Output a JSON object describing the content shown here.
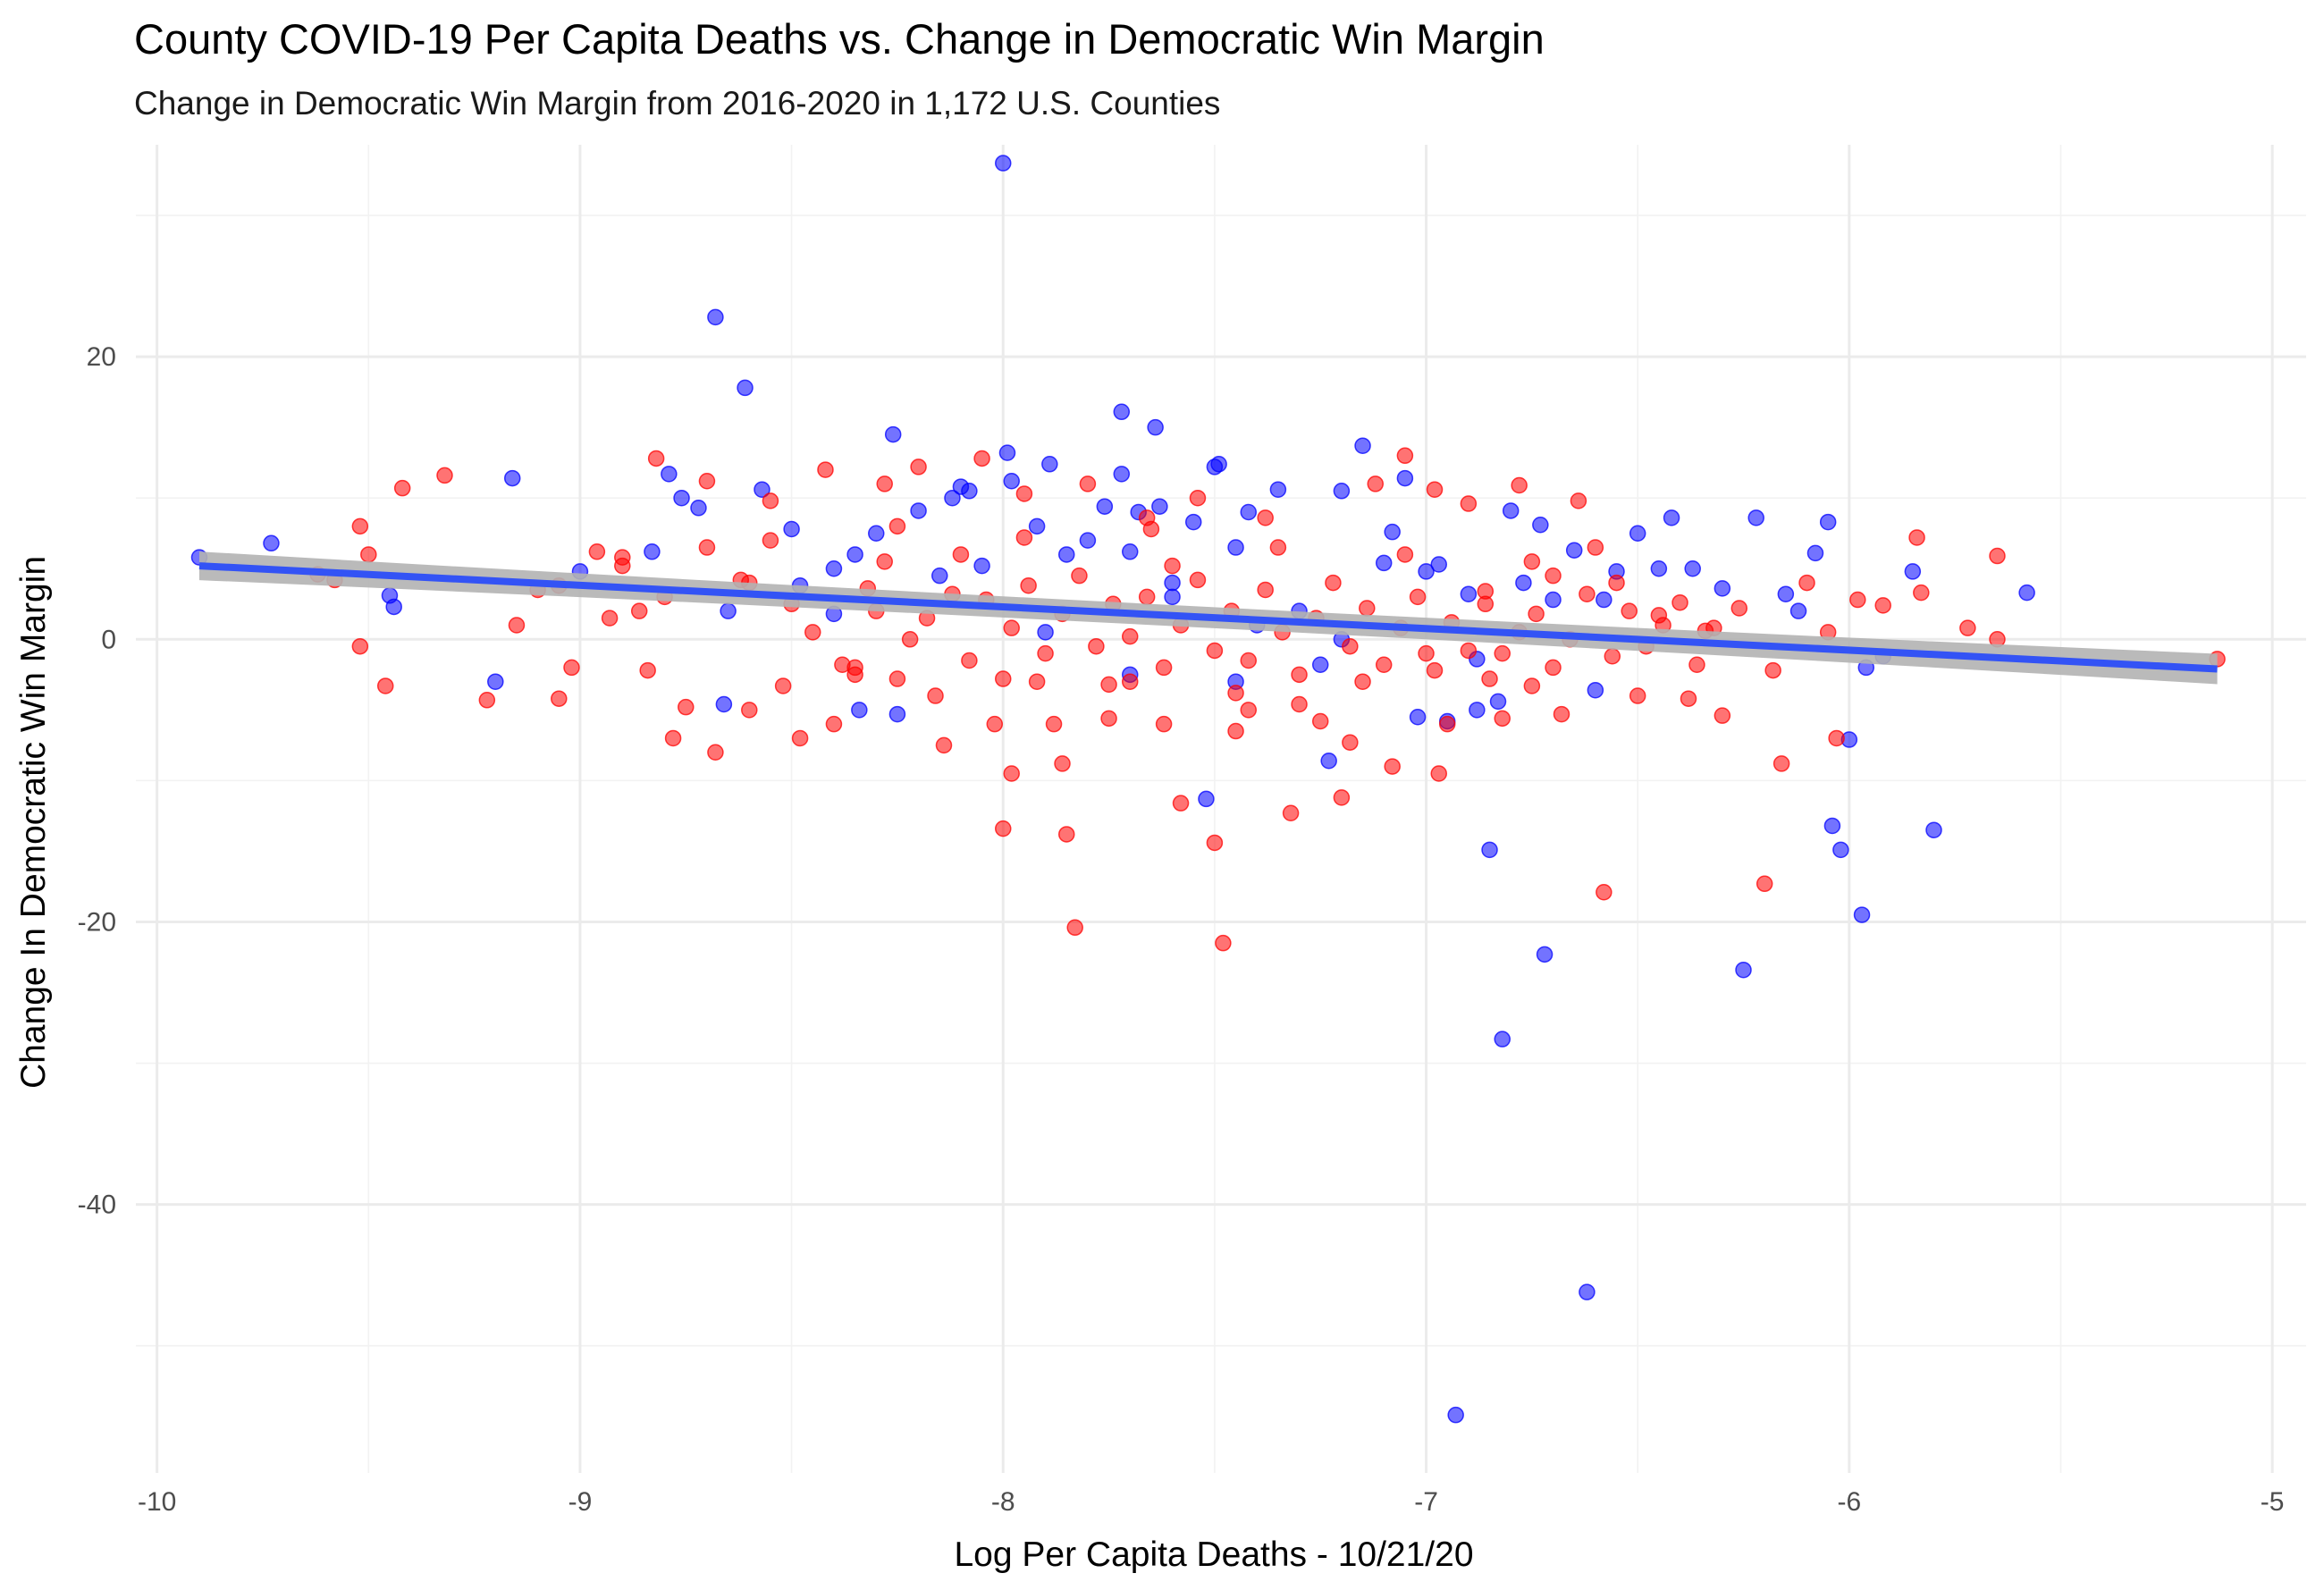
{
  "chart_data": {
    "type": "scatter",
    "title": "County COVID-19 Per Capita Deaths vs. Change in Democratic Win Margin",
    "subtitle": "Change in Democratic Win Margin from 2016-2020 in 1,172 U.S. Counties",
    "xlabel": "Log Per Capita Deaths - 10/21/20",
    "ylabel": "Change In Democratic Win Margin",
    "xlim": [
      -10.05,
      -4.92
    ],
    "ylim": [
      -59,
      35
    ],
    "x_ticks": [
      -10,
      -9,
      -8,
      -7,
      -6,
      -5
    ],
    "y_ticks": [
      -40,
      -20,
      0,
      20
    ],
    "x_tick_labels": [
      "-10",
      "-9",
      "-8",
      "-7",
      "-6",
      "-5"
    ],
    "y_tick_labels": [
      "-40",
      "-20",
      "0",
      "20"
    ],
    "grid": true,
    "trend_line": {
      "x": [
        -9.9,
        -5.13
      ],
      "y": [
        5.2,
        -2.1
      ],
      "color": "#3353f5",
      "band_color": "#b3b3b3"
    },
    "series": [
      {
        "color": "#0000ff",
        "points": [
          [
            -9.9,
            5.8
          ],
          [
            -9.73,
            6.8
          ],
          [
            -9.45,
            3.1
          ],
          [
            -9.44,
            2.3
          ],
          [
            -9.2,
            -3.0
          ],
          [
            -9.16,
            11.4
          ],
          [
            -9.0,
            4.8
          ],
          [
            -8.83,
            6.2
          ],
          [
            -8.79,
            11.7
          ],
          [
            -8.76,
            10.0
          ],
          [
            -8.72,
            9.3
          ],
          [
            -8.68,
            22.8
          ],
          [
            -8.61,
            17.8
          ],
          [
            -8.57,
            10.6
          ],
          [
            -8.66,
            -4.6
          ],
          [
            -8.65,
            2.0
          ],
          [
            -8.5,
            7.8
          ],
          [
            -8.48,
            3.8
          ],
          [
            -8.4,
            5.0
          ],
          [
            -8.35,
            6.0
          ],
          [
            -8.34,
            -5.0
          ],
          [
            -8.3,
            7.5
          ],
          [
            -8.26,
            14.5
          ],
          [
            -8.25,
            -5.3
          ],
          [
            -8.2,
            9.1
          ],
          [
            -8.15,
            4.5
          ],
          [
            -8.12,
            10.0
          ],
          [
            -8.1,
            10.8
          ],
          [
            -8.08,
            10.5
          ],
          [
            -8.05,
            5.2
          ],
          [
            -8.0,
            33.7
          ],
          [
            -7.99,
            13.2
          ],
          [
            -7.98,
            11.2
          ],
          [
            -7.92,
            8.0
          ],
          [
            -7.89,
            12.4
          ],
          [
            -7.85,
            6.0
          ],
          [
            -7.8,
            7.0
          ],
          [
            -7.76,
            9.4
          ],
          [
            -7.72,
            16.1
          ],
          [
            -7.72,
            11.7
          ],
          [
            -7.7,
            6.2
          ],
          [
            -7.68,
            9.0
          ],
          [
            -7.64,
            15.0
          ],
          [
            -7.63,
            9.4
          ],
          [
            -7.6,
            4.0
          ],
          [
            -7.55,
            8.3
          ],
          [
            -7.52,
            -11.3
          ],
          [
            -7.5,
            12.2
          ],
          [
            -7.49,
            12.4
          ],
          [
            -7.45,
            6.5
          ],
          [
            -7.42,
            9.0
          ],
          [
            -7.4,
            1.0
          ],
          [
            -7.35,
            10.6
          ],
          [
            -7.3,
            2.0
          ],
          [
            -7.25,
            -1.8
          ],
          [
            -7.23,
            -8.6
          ],
          [
            -7.2,
            10.5
          ],
          [
            -7.15,
            13.7
          ],
          [
            -7.1,
            5.4
          ],
          [
            -7.08,
            7.6
          ],
          [
            -7.05,
            11.4
          ],
          [
            -7.02,
            -5.5
          ],
          [
            -7.0,
            4.8
          ],
          [
            -6.97,
            5.3
          ],
          [
            -6.95,
            -5.8
          ],
          [
            -6.93,
            -54.9
          ],
          [
            -6.9,
            3.2
          ],
          [
            -6.88,
            -1.4
          ],
          [
            -6.85,
            -14.9
          ],
          [
            -6.83,
            -4.4
          ],
          [
            -6.82,
            -28.3
          ],
          [
            -6.8,
            9.1
          ],
          [
            -6.77,
            4.0
          ],
          [
            -6.73,
            8.1
          ],
          [
            -6.72,
            -22.3
          ],
          [
            -6.7,
            2.8
          ],
          [
            -6.65,
            6.3
          ],
          [
            -6.62,
            -46.2
          ],
          [
            -6.6,
            -3.6
          ],
          [
            -6.58,
            2.8
          ],
          [
            -6.55,
            4.8
          ],
          [
            -6.5,
            7.5
          ],
          [
            -6.45,
            5.0
          ],
          [
            -6.42,
            8.6
          ],
          [
            -6.37,
            5.0
          ],
          [
            -6.3,
            3.6
          ],
          [
            -6.25,
            -23.4
          ],
          [
            -6.22,
            8.6
          ],
          [
            -6.15,
            3.2
          ],
          [
            -6.12,
            2.0
          ],
          [
            -6.08,
            6.1
          ],
          [
            -6.05,
            8.3
          ],
          [
            -6.04,
            -13.2
          ],
          [
            -6.02,
            -14.9
          ],
          [
            -6.0,
            -7.1
          ],
          [
            -5.97,
            -19.5
          ],
          [
            -5.96,
            -2.0
          ],
          [
            -5.92,
            -1.2
          ],
          [
            -5.85,
            4.8
          ],
          [
            -5.8,
            -13.5
          ],
          [
            -5.58,
            3.3
          ],
          [
            -7.45,
            -3.0
          ],
          [
            -7.7,
            -2.5
          ],
          [
            -7.9,
            0.5
          ],
          [
            -8.4,
            1.8
          ],
          [
            -7.2,
            0.0
          ],
          [
            -6.88,
            -5.0
          ],
          [
            -7.6,
            3.0
          ]
        ]
      },
      {
        "color": "#ff0000",
        "points": [
          [
            -9.62,
            4.6
          ],
          [
            -9.58,
            4.2
          ],
          [
            -9.52,
            8.0
          ],
          [
            -9.5,
            6.0
          ],
          [
            -9.52,
            -0.5
          ],
          [
            -9.46,
            -3.3
          ],
          [
            -9.42,
            10.7
          ],
          [
            -9.32,
            11.6
          ],
          [
            -9.22,
            -4.3
          ],
          [
            -9.15,
            1.0
          ],
          [
            -9.1,
            3.5
          ],
          [
            -9.05,
            -4.2
          ],
          [
            -9.02,
            -2.0
          ],
          [
            -8.96,
            6.2
          ],
          [
            -8.93,
            1.5
          ],
          [
            -8.9,
            5.2
          ],
          [
            -8.86,
            2.0
          ],
          [
            -8.84,
            -2.2
          ],
          [
            -8.82,
            12.8
          ],
          [
            -8.78,
            -7.0
          ],
          [
            -8.75,
            -4.8
          ],
          [
            -8.7,
            11.2
          ],
          [
            -8.68,
            -8.0
          ],
          [
            -8.62,
            4.2
          ],
          [
            -8.6,
            -5.0
          ],
          [
            -8.55,
            9.8
          ],
          [
            -8.52,
            -3.3
          ],
          [
            -8.48,
            -7.0
          ],
          [
            -8.42,
            12.0
          ],
          [
            -8.4,
            -6.0
          ],
          [
            -8.35,
            -2.5
          ],
          [
            -8.32,
            3.6
          ],
          [
            -8.28,
            11.0
          ],
          [
            -8.25,
            -2.8
          ],
          [
            -8.2,
            12.2
          ],
          [
            -8.16,
            -4.0
          ],
          [
            -8.14,
            -7.5
          ],
          [
            -8.1,
            6.0
          ],
          [
            -8.05,
            12.8
          ],
          [
            -8.02,
            -6.0
          ],
          [
            -8.0,
            -13.4
          ],
          [
            -7.98,
            -9.5
          ],
          [
            -7.95,
            10.3
          ],
          [
            -7.92,
            -3.0
          ],
          [
            -7.88,
            -6.0
          ],
          [
            -7.86,
            -8.8
          ],
          [
            -7.85,
            -13.8
          ],
          [
            -7.83,
            -20.4
          ],
          [
            -7.8,
            11.0
          ],
          [
            -7.75,
            -5.6
          ],
          [
            -7.7,
            -3.0
          ],
          [
            -7.66,
            8.6
          ],
          [
            -7.62,
            -6.0
          ],
          [
            -7.58,
            -11.6
          ],
          [
            -7.54,
            10.0
          ],
          [
            -7.5,
            -14.4
          ],
          [
            -7.48,
            -21.5
          ],
          [
            -7.45,
            -6.5
          ],
          [
            -7.42,
            -5.0
          ],
          [
            -7.38,
            8.6
          ],
          [
            -7.32,
            -12.3
          ],
          [
            -7.3,
            -4.6
          ],
          [
            -7.25,
            -5.8
          ],
          [
            -7.2,
            -11.2
          ],
          [
            -7.18,
            -7.3
          ],
          [
            -7.12,
            11.0
          ],
          [
            -7.08,
            -9.0
          ],
          [
            -7.05,
            13.0
          ],
          [
            -6.98,
            10.6
          ],
          [
            -6.97,
            -9.5
          ],
          [
            -6.95,
            -6.0
          ],
          [
            -6.9,
            9.6
          ],
          [
            -6.86,
            3.4
          ],
          [
            -6.82,
            -5.6
          ],
          [
            -6.78,
            10.9
          ],
          [
            -6.75,
            -3.3
          ],
          [
            -6.7,
            4.5
          ],
          [
            -6.68,
            -5.3
          ],
          [
            -6.64,
            9.8
          ],
          [
            -6.6,
            6.5
          ],
          [
            -6.58,
            -17.9
          ],
          [
            -6.55,
            4.0
          ],
          [
            -6.5,
            -4.0
          ],
          [
            -6.45,
            1.7
          ],
          [
            -6.38,
            -4.2
          ],
          [
            -6.34,
            0.6
          ],
          [
            -6.3,
            -5.4
          ],
          [
            -6.26,
            2.2
          ],
          [
            -6.2,
            -17.3
          ],
          [
            -6.18,
            -2.2
          ],
          [
            -6.16,
            -8.8
          ],
          [
            -6.1,
            4.0
          ],
          [
            -6.05,
            0.5
          ],
          [
            -6.03,
            -7.0
          ],
          [
            -5.98,
            2.8
          ],
          [
            -5.92,
            2.4
          ],
          [
            -5.84,
            7.2
          ],
          [
            -5.83,
            3.3
          ],
          [
            -5.72,
            0.8
          ],
          [
            -5.65,
            5.9
          ],
          [
            -5.65,
            0.0
          ],
          [
            -5.13,
            -1.4
          ],
          [
            -8.6,
            4.0
          ],
          [
            -8.5,
            2.5
          ],
          [
            -8.45,
            0.5
          ],
          [
            -8.38,
            -1.8
          ],
          [
            -8.3,
            2.0
          ],
          [
            -8.28,
            5.5
          ],
          [
            -8.22,
            0.0
          ],
          [
            -8.18,
            1.5
          ],
          [
            -8.12,
            3.2
          ],
          [
            -8.08,
            -1.5
          ],
          [
            -8.04,
            2.8
          ],
          [
            -7.98,
            0.8
          ],
          [
            -7.94,
            3.8
          ],
          [
            -7.9,
            -1.0
          ],
          [
            -7.86,
            1.8
          ],
          [
            -7.82,
            4.5
          ],
          [
            -7.78,
            -0.5
          ],
          [
            -7.74,
            2.5
          ],
          [
            -7.7,
            0.2
          ],
          [
            -7.66,
            3.0
          ],
          [
            -7.62,
            -2.0
          ],
          [
            -7.58,
            1.0
          ],
          [
            -7.54,
            4.2
          ],
          [
            -7.5,
            -0.8
          ],
          [
            -7.46,
            2.0
          ],
          [
            -7.42,
            -1.5
          ],
          [
            -7.38,
            3.5
          ],
          [
            -7.34,
            0.5
          ],
          [
            -7.3,
            -2.5
          ],
          [
            -7.26,
            1.5
          ],
          [
            -7.22,
            4.0
          ],
          [
            -7.18,
            -0.5
          ],
          [
            -7.14,
            2.2
          ],
          [
            -7.1,
            -1.8
          ],
          [
            -7.06,
            0.8
          ],
          [
            -7.02,
            3.0
          ],
          [
            -6.98,
            -2.2
          ],
          [
            -6.94,
            1.2
          ],
          [
            -6.9,
            -0.8
          ],
          [
            -6.86,
            2.5
          ],
          [
            -6.82,
            -1.0
          ],
          [
            -6.78,
            0.5
          ],
          [
            -6.74,
            1.8
          ],
          [
            -6.7,
            -2.0
          ],
          [
            -6.66,
            0.0
          ],
          [
            -6.62,
            3.2
          ],
          [
            -6.56,
            -1.2
          ],
          [
            -6.52,
            2.0
          ],
          [
            -6.48,
            -0.5
          ],
          [
            -6.44,
            1.0
          ],
          [
            -6.4,
            2.6
          ],
          [
            -6.36,
            -1.8
          ],
          [
            -6.32,
            0.8
          ],
          [
            -8.7,
            6.5
          ],
          [
            -8.8,
            3.0
          ],
          [
            -8.9,
            5.8
          ],
          [
            -9.05,
            3.8
          ],
          [
            -8.55,
            7.0
          ],
          [
            -8.25,
            8.0
          ],
          [
            -7.95,
            7.2
          ],
          [
            -7.65,
            7.8
          ],
          [
            -7.35,
            6.5
          ],
          [
            -7.05,
            6.0
          ],
          [
            -6.75,
            5.5
          ],
          [
            -8.0,
            -2.8
          ],
          [
            -7.75,
            -3.2
          ],
          [
            -7.45,
            -3.8
          ],
          [
            -7.15,
            -3.0
          ],
          [
            -6.85,
            -2.8
          ],
          [
            -8.35,
            -2.0
          ],
          [
            -7.6,
            5.2
          ],
          [
            -7.0,
            -1.0
          ]
        ]
      }
    ]
  }
}
